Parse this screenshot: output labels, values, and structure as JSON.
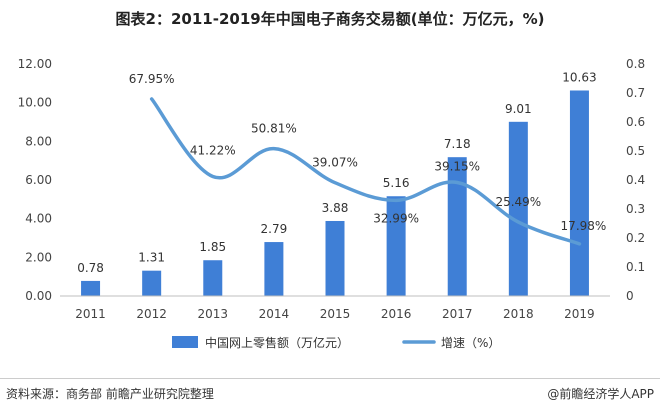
{
  "title": "图表2：2011-2019年中国电子商务交易额(单位：万亿元，%)",
  "source": "资料来源：商务部 前瞻产业研究院整理",
  "brand": "@前瞻经济学人APP",
  "colors": {
    "bar": "#3f7fd6",
    "line": "#5b9bd5",
    "axis": "#bfbfbf",
    "text": "#444444"
  },
  "chart_data": {
    "type": "bar",
    "categories": [
      "2011",
      "2012",
      "2013",
      "2014",
      "2015",
      "2016",
      "2017",
      "2018",
      "2019"
    ],
    "series": [
      {
        "name": "中国网上零售额（万亿元）",
        "type": "bar",
        "axis": "left",
        "values": [
          0.78,
          1.31,
          1.85,
          2.79,
          3.88,
          5.16,
          7.18,
          9.01,
          10.63
        ],
        "labels": [
          "0.78",
          "1.31",
          "1.85",
          "2.79",
          "3.88",
          "5.16",
          "7.18",
          "9.01",
          "10.63"
        ]
      },
      {
        "name": "增速（%）",
        "type": "line",
        "axis": "right",
        "values": [
          null,
          0.6795,
          0.4122,
          0.5081,
          0.3907,
          0.3299,
          0.3915,
          0.2549,
          0.1798
        ],
        "labels": [
          null,
          "67.95%",
          "41.22%",
          "50.81%",
          "39.07%",
          "32.99%",
          "39.15%",
          "25.49%",
          "17.98%"
        ]
      }
    ],
    "ylim": [
      0,
      12
    ],
    "yticks": [
      "0.00",
      "2.00",
      "4.00",
      "6.00",
      "8.00",
      "10.00",
      "12.00"
    ],
    "y2lim": [
      0,
      0.8
    ],
    "y2ticks": [
      "0",
      "0.1",
      "0.2",
      "0.3",
      "0.4",
      "0.5",
      "0.6",
      "0.7",
      "0.8"
    ],
    "legend": [
      "中国网上零售额（万亿元）",
      "增速（%）"
    ],
    "legend_position": "bottom"
  }
}
